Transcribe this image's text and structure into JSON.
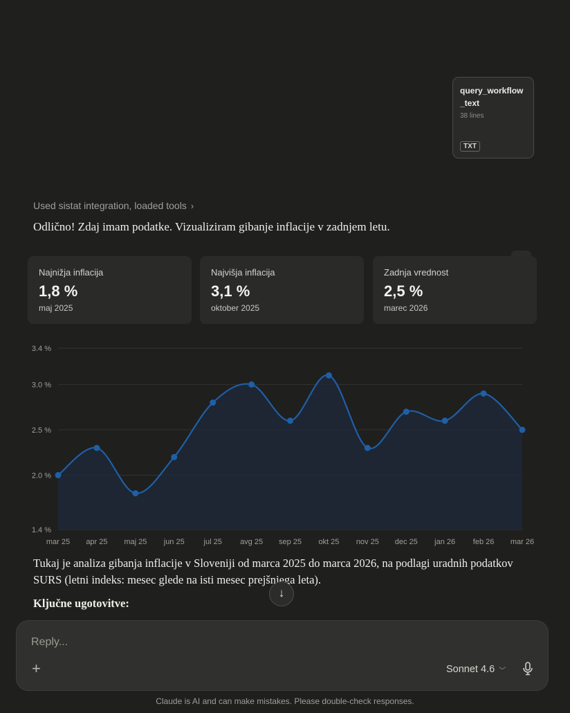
{
  "attachment": {
    "name": "query_workflow_text",
    "lines": "38 lines",
    "type": "TXT"
  },
  "tools_used": {
    "label": "Used sistat integration, loaded tools"
  },
  "intro": "Odlično! Zdaj imam podatke. Vizualiziram gibanje inflacije v zadnjem letu.",
  "stats": [
    {
      "label": "Najnižja inflacija",
      "value": "1,8 %",
      "period": "maj 2025"
    },
    {
      "label": "Najvišja inflacija",
      "value": "3,1 %",
      "period": "oktober 2025"
    },
    {
      "label": "Zadnja vrednost",
      "value": "2,5 %",
      "period": "marec 2026"
    }
  ],
  "chart_data": {
    "type": "area",
    "categories": [
      "mar 25",
      "apr 25",
      "maj 25",
      "jun 25",
      "jul 25",
      "avg 25",
      "sep 25",
      "okt 25",
      "nov 25",
      "dec 25",
      "jan 26",
      "feb 26",
      "mar 26"
    ],
    "values": [
      2.0,
      2.3,
      1.8,
      2.2,
      2.8,
      3.0,
      2.6,
      3.1,
      2.3,
      2.7,
      2.6,
      2.9,
      2.5
    ],
    "yticks": [
      1.4,
      2.0,
      2.5,
      3.0,
      3.4
    ],
    "ytick_labels": [
      "1.4 %",
      "2.0 %",
      "2.5 %",
      "3.0 %",
      "3.4 %"
    ],
    "ylim": [
      1.4,
      3.4
    ],
    "grid": true,
    "line_color": "#1f5fa6",
    "fill_color": "#1e2a3a"
  },
  "analysis": "Tukaj je analiza gibanja inflacije v Sloveniji od marca 2025 do marca 2026, na podlagi uradnih podatkov SURS (letni indeks: mesec glede na isti mesec prejšnjega leta).",
  "key_findings_title": "Ključne ugotovitve:",
  "composer": {
    "placeholder": "Reply...",
    "model": "Sonnet 4.6"
  },
  "disclaimer": "Claude is AI and can make mistakes. Please double-check responses."
}
